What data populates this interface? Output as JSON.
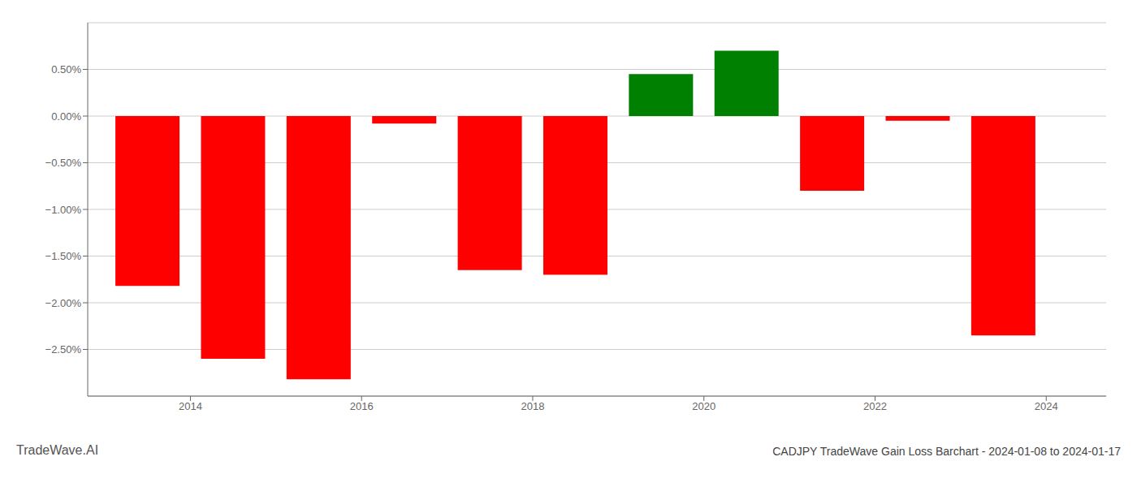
{
  "chart_data": {
    "type": "bar",
    "title": "CADJPY TradeWave Gain Loss Barchart - 2024-01-08 to 2024-01-17",
    "annotations": [
      "TradeWave.AI"
    ],
    "x": [
      2013.5,
      2014.5,
      2015.5,
      2016.5,
      2017.5,
      2018.5,
      2019.5,
      2020.5,
      2021.5,
      2022.5,
      2023.5
    ],
    "values": [
      -1.82,
      -2.6,
      -2.82,
      -0.08,
      -1.65,
      -1.7,
      0.45,
      0.7,
      -0.8,
      -0.05,
      -2.35
    ],
    "colors": [
      "#ff0000",
      "#ff0000",
      "#ff0000",
      "#ff0000",
      "#ff0000",
      "#ff0000",
      "#008000",
      "#008000",
      "#ff0000",
      "#ff0000",
      "#ff0000"
    ],
    "xlim": [
      2012.8,
      2024.7
    ],
    "xticks": [
      2014,
      2016,
      2018,
      2020,
      2022,
      2024
    ],
    "ylim": [
      -3.0,
      1.0
    ],
    "yticks": [
      {
        "value": -2.5,
        "label": "−2.50%"
      },
      {
        "value": -2.0,
        "label": "−2.00%"
      },
      {
        "value": -1.5,
        "label": "−1.50%"
      },
      {
        "value": -1.0,
        "label": "−1.00%"
      },
      {
        "value": -0.5,
        "label": "−0.50%"
      },
      {
        "value": 0.0,
        "label": "0.00%"
      },
      {
        "value": 0.5,
        "label": "0.50%"
      }
    ],
    "grid": true
  }
}
